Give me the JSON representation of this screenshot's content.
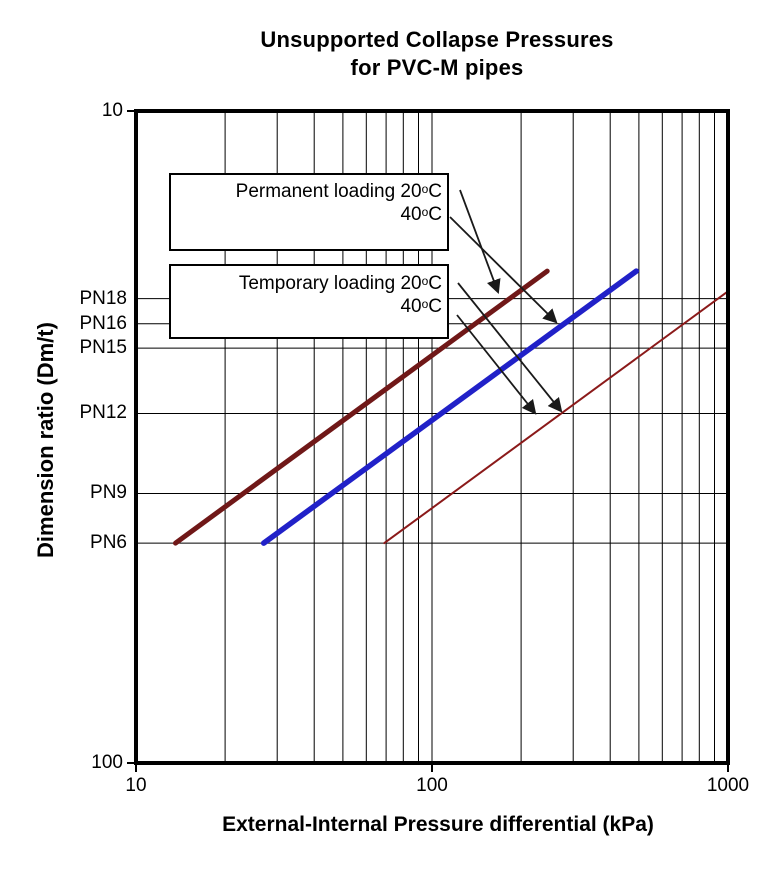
{
  "title_line1": "Unsupported Collapse Pressures",
  "title_line2": "for PVC-M pipes",
  "legend_boxes": [
    {
      "name": "permanent-loading",
      "line1_pre": "Permanent loading 20",
      "line1_sup": "o",
      "line1_post": "C",
      "line2_pre": "40",
      "line2_sup": "o",
      "line2_post": "C"
    },
    {
      "name": "temporary-loading",
      "line1_pre": "Temporary loading 20",
      "line1_sup": "o",
      "line1_post": "C",
      "line2_pre": "40",
      "line2_sup": "o",
      "line2_post": "C"
    }
  ],
  "chart_data": {
    "type": "line",
    "title": "Unsupported Collapse Pressures for PVC-M pipes",
    "xlabel": "External-Internal Pressure differential (kPa)",
    "ylabel": "Dimension ratio (Dm/t)",
    "x_scale": "log",
    "y_scale": "log",
    "y_inverted": true,
    "xlim": [
      10,
      1000
    ],
    "ylim": [
      10,
      100
    ],
    "grid": true,
    "x_tick_labels": [
      {
        "value": 10,
        "label": "10"
      },
      {
        "value": 100,
        "label": "100"
      },
      {
        "value": 1000,
        "label": "1000"
      }
    ],
    "y_tick_labels": [
      {
        "value": 10,
        "label": "10"
      },
      {
        "value": 100,
        "label": "100"
      }
    ],
    "x_gridlines": [
      20,
      30,
      40,
      50,
      60,
      70,
      80,
      90,
      100,
      200,
      300,
      400,
      500,
      600,
      700,
      800,
      900
    ],
    "pn_gridlines": [
      {
        "label": "PN18",
        "dmt": 19.4
      },
      {
        "label": "PN16",
        "dmt": 21.2
      },
      {
        "label": "PN15",
        "dmt": 23.1
      },
      {
        "label": "PN12",
        "dmt": 29.1
      },
      {
        "label": "PN9",
        "dmt": 38.6
      },
      {
        "label": "PN6",
        "dmt": 46.0
      }
    ],
    "series": [
      {
        "name": "Permanent loading 20°C",
        "color": "#701818",
        "stroke_width": 5,
        "points": [
          [
            13.6,
            46.0
          ],
          [
            245,
            17.6
          ]
        ]
      },
      {
        "name": "Permanent loading 40°C",
        "color": "#2121c8",
        "stroke_width": 5.5,
        "points": [
          [
            27,
            46.0
          ],
          [
            490,
            17.6
          ]
        ]
      },
      {
        "name": "Temporary loading 20°C / 40°C",
        "color": "#8b1a1a",
        "stroke_width": 2,
        "points": [
          [
            69,
            46.0
          ],
          [
            1000,
            18.9
          ]
        ]
      }
    ],
    "annotations": {
      "arrow_color": "#1a1a1a",
      "arrows": [
        {
          "name": "permanent-20c-arrow",
          "from": [
            460,
            190
          ],
          "to": [
            498,
            292
          ]
        },
        {
          "name": "permanent-40c-arrow",
          "from": [
            450,
            217
          ],
          "to": [
            556,
            322
          ]
        },
        {
          "name": "temporary-20c-arrow",
          "from": [
            458,
            283
          ],
          "to": [
            561,
            411
          ]
        },
        {
          "name": "temporary-40c-arrow",
          "from": [
            457,
            315
          ],
          "to": [
            535,
            413
          ]
        }
      ]
    }
  }
}
